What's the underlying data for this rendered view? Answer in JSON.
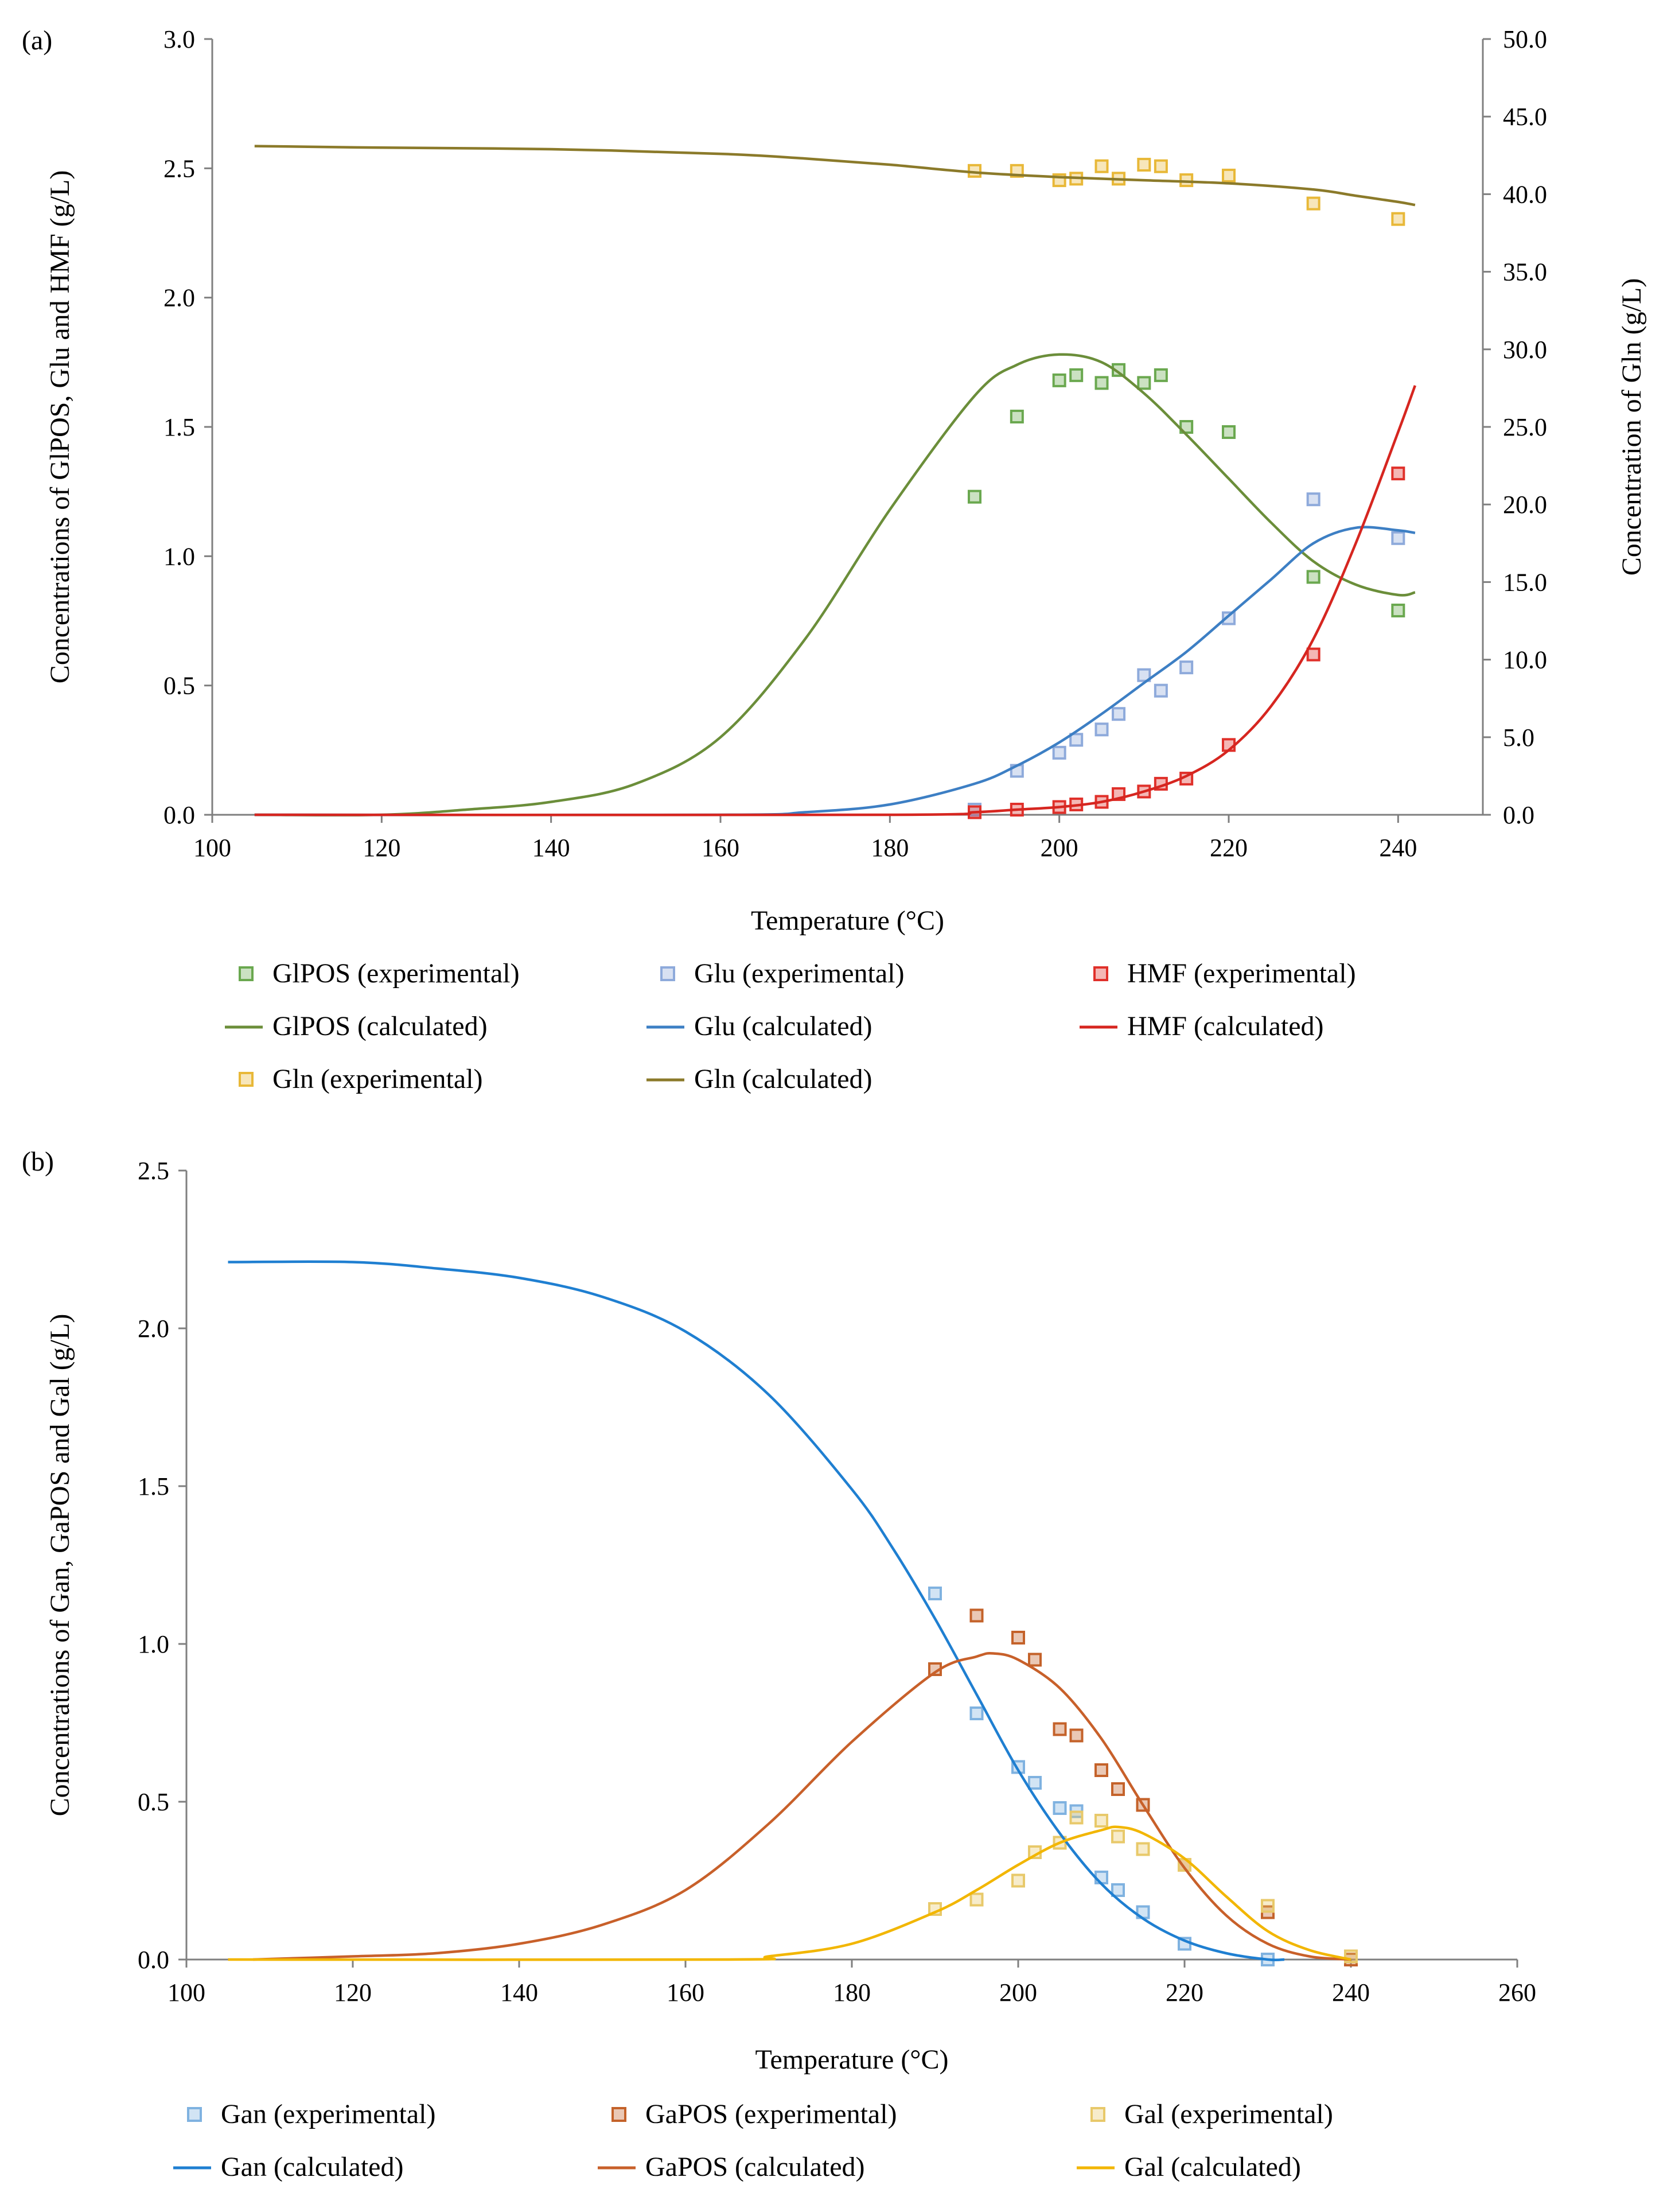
{
  "chart_data": [
    {
      "type": "line",
      "panel_label": "(a)",
      "title": "",
      "xlabel": "Temperature  (°C)",
      "ylabel": "Concentrations of GlPOS, Glu and HMF (g/L)",
      "y2label": "Concentration of Gln (g/L)",
      "xlim": [
        100,
        250
      ],
      "ylim": [
        0,
        3.0
      ],
      "y2lim": [
        0,
        50.0
      ],
      "xticks": [
        "100",
        "120",
        "140",
        "160",
        "180",
        "200",
        "220",
        "240"
      ],
      "yticks": [
        "0.0",
        "0.5",
        "1.0",
        "1.5",
        "2.0",
        "2.5",
        "3.0"
      ],
      "y2ticks": [
        "0.0",
        "5.0",
        "10.0",
        "15.0",
        "20.0",
        "25.0",
        "30.0",
        "35.0",
        "40.0",
        "45.0",
        "50.0"
      ],
      "legend_position": "bottom",
      "series": [
        {
          "name": "GlPOS (experimental)",
          "kind": "markers",
          "axis": "left",
          "color": "#6aa84f",
          "x": [
            190,
            195,
            200,
            202,
            205,
            207,
            210,
            212,
            215,
            220,
            230,
            240
          ],
          "y": [
            1.23,
            1.54,
            1.68,
            1.7,
            1.67,
            1.72,
            1.67,
            1.7,
            1.5,
            1.48,
            0.92,
            0.79
          ]
        },
        {
          "name": "Glu (experimental)",
          "kind": "markers",
          "axis": "left",
          "color": "#8eaadb",
          "x": [
            190,
            195,
            200,
            202,
            205,
            207,
            210,
            212,
            215,
            220,
            230,
            240
          ],
          "y": [
            0.02,
            0.17,
            0.24,
            0.29,
            0.33,
            0.39,
            0.54,
            0.48,
            0.57,
            0.76,
            1.22,
            1.07
          ]
        },
        {
          "name": "HMF (experimental)",
          "kind": "markers",
          "axis": "left",
          "color": "#e0302a",
          "x": [
            190,
            195,
            200,
            202,
            205,
            207,
            210,
            212,
            215,
            220,
            230,
            240
          ],
          "y": [
            0.01,
            0.02,
            0.03,
            0.04,
            0.05,
            0.08,
            0.09,
            0.12,
            0.14,
            0.27,
            0.62,
            1.32
          ]
        },
        {
          "name": "GlPOS (calculated)",
          "kind": "line",
          "axis": "left",
          "color": "#6b8e3a",
          "x": [
            105,
            120,
            130,
            140,
            150,
            160,
            170,
            180,
            190,
            195,
            200,
            205,
            210,
            215,
            220,
            225,
            230,
            235,
            240,
            242
          ],
          "y": [
            0.0,
            0.0,
            0.02,
            0.05,
            0.12,
            0.3,
            0.68,
            1.18,
            1.62,
            1.74,
            1.78,
            1.75,
            1.63,
            1.47,
            1.3,
            1.13,
            0.98,
            0.89,
            0.85,
            0.86
          ]
        },
        {
          "name": "Glu (calculated)",
          "kind": "line",
          "axis": "left",
          "color": "#3d7fc4",
          "x": [
            105,
            160,
            170,
            180,
            190,
            195,
            200,
            205,
            210,
            215,
            220,
            225,
            230,
            235,
            240,
            242
          ],
          "y": [
            0.0,
            0.0,
            0.01,
            0.04,
            0.12,
            0.19,
            0.28,
            0.39,
            0.51,
            0.63,
            0.77,
            0.91,
            1.05,
            1.11,
            1.1,
            1.09
          ]
        },
        {
          "name": "HMF (calculated)",
          "kind": "line",
          "axis": "left",
          "color": "#d62620",
          "x": [
            105,
            180,
            190,
            195,
            200,
            205,
            210,
            215,
            220,
            225,
            230,
            235,
            240,
            242
          ],
          "y": [
            0.0,
            0.0,
            0.01,
            0.02,
            0.03,
            0.05,
            0.09,
            0.15,
            0.25,
            0.42,
            0.68,
            1.05,
            1.48,
            1.66
          ]
        },
        {
          "name": "Gln (experimental)",
          "kind": "markers",
          "axis": "right",
          "color": "#e8b838",
          "x": [
            190,
            195,
            200,
            202,
            205,
            207,
            210,
            212,
            215,
            220,
            230,
            240
          ],
          "y": [
            41.5,
            41.5,
            40.9,
            41.0,
            41.8,
            41.0,
            41.9,
            41.8,
            40.9,
            41.2,
            39.4,
            38.4
          ]
        },
        {
          "name": "Gln (calculated)",
          "kind": "line",
          "axis": "right",
          "color": "#8b7a2a",
          "x": [
            105,
            120,
            140,
            160,
            170,
            180,
            190,
            200,
            210,
            220,
            230,
            235,
            240,
            242
          ],
          "y": [
            43.1,
            43.0,
            42.9,
            42.6,
            42.3,
            41.9,
            41.4,
            41.1,
            40.9,
            40.7,
            40.3,
            39.9,
            39.5,
            39.3
          ]
        }
      ],
      "legend_entries": [
        "GlPOS (experimental)",
        "Glu (experimental)",
        "HMF (experimental)",
        "GlPOS (calculated)",
        "Glu (calculated)",
        "HMF (calculated)",
        "Gln (experimental)",
        "Gln (calculated)"
      ]
    },
    {
      "type": "line",
      "panel_label": "(b)",
      "title": "",
      "xlabel": "Temperature  (°C)",
      "ylabel": "Concentrations of Gan, GaPOS and Gal (g/L)",
      "xlim": [
        100,
        260
      ],
      "ylim": [
        0,
        2.5
      ],
      "xticks": [
        "100",
        "120",
        "140",
        "160",
        "180",
        "200",
        "220",
        "240",
        "260"
      ],
      "yticks": [
        "0.0",
        "0.5",
        "1.0",
        "1.5",
        "2.0",
        "2.5"
      ],
      "legend_position": "bottom",
      "series": [
        {
          "name": "Gan (experimental)",
          "kind": "markers",
          "color": "#7fb2e0",
          "x": [
            190,
            195,
            200,
            202,
            205,
            207,
            210,
            212,
            215,
            220,
            230
          ],
          "y": [
            1.16,
            0.78,
            0.61,
            0.56,
            0.48,
            0.47,
            0.26,
            0.22,
            0.15,
            0.05,
            0.0
          ]
        },
        {
          "name": "GaPOS (experimental)",
          "kind": "markers",
          "color": "#c4622a",
          "x": [
            190,
            195,
            200,
            202,
            205,
            207,
            210,
            212,
            215,
            220,
            230,
            240
          ],
          "y": [
            0.92,
            1.09,
            1.02,
            0.95,
            0.73,
            0.71,
            0.6,
            0.54,
            0.49,
            0.3,
            0.15,
            0.0
          ]
        },
        {
          "name": "Gal (experimental)",
          "kind": "markers",
          "color": "#e8c96a",
          "x": [
            190,
            195,
            200,
            202,
            205,
            207,
            210,
            212,
            215,
            220,
            230,
            240
          ],
          "y": [
            0.16,
            0.19,
            0.25,
            0.34,
            0.37,
            0.45,
            0.44,
            0.39,
            0.35,
            0.3,
            0.17,
            0.01
          ]
        },
        {
          "name": "Gan (calculated)",
          "kind": "line",
          "color": "#1f7fd1",
          "x": [
            105,
            120,
            130,
            140,
            150,
            160,
            170,
            180,
            185,
            190,
            195,
            200,
            205,
            210,
            215,
            220,
            225,
            230,
            232
          ],
          "y": [
            2.21,
            2.21,
            2.19,
            2.16,
            2.1,
            1.99,
            1.79,
            1.49,
            1.3,
            1.08,
            0.84,
            0.6,
            0.4,
            0.24,
            0.13,
            0.06,
            0.02,
            0.0,
            0.0
          ]
        },
        {
          "name": "GaPOS (calculated)",
          "kind": "line",
          "color": "#c8602a",
          "x": [
            108,
            120,
            130,
            140,
            150,
            160,
            170,
            180,
            190,
            195,
            197,
            200,
            205,
            210,
            215,
            220,
            225,
            230,
            235,
            240
          ],
          "y": [
            0.0,
            0.01,
            0.02,
            0.05,
            0.11,
            0.22,
            0.43,
            0.69,
            0.91,
            0.96,
            0.97,
            0.95,
            0.86,
            0.7,
            0.49,
            0.29,
            0.14,
            0.05,
            0.01,
            0.0
          ]
        },
        {
          "name": "Gal (calculated)",
          "kind": "line",
          "color": "#f2b600",
          "x": [
            105,
            165,
            170,
            180,
            190,
            195,
            200,
            205,
            210,
            212,
            215,
            220,
            225,
            230,
            235,
            240
          ],
          "y": [
            0.0,
            0.0,
            0.01,
            0.05,
            0.15,
            0.22,
            0.3,
            0.37,
            0.41,
            0.42,
            0.4,
            0.32,
            0.2,
            0.09,
            0.03,
            0.0
          ]
        }
      ],
      "legend_entries": [
        "Gan (experimental)",
        "GaPOS (experimental)",
        "Gal (experimental)",
        "Gan (calculated)",
        "GaPOS (calculated)",
        "Gal (calculated)"
      ]
    }
  ]
}
